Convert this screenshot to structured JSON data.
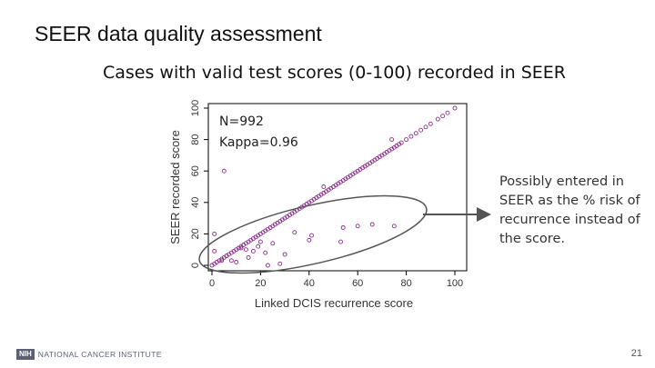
{
  "slide": {
    "title": "SEER data quality assessment",
    "subtitle": "Cases with valid test scores (0-100) recorded in SEER",
    "page_number": "21"
  },
  "footer": {
    "logo_badge": "NIH",
    "logo_text": "NATIONAL CANCER INSTITUTE"
  },
  "annotation": {
    "text": "Possibly entered in SEER as the % risk of recurrence instead of the score."
  },
  "colors": {
    "points": "#8b2c8b",
    "ellipse": "#555555",
    "arrow": "#555555"
  },
  "chart_data": {
    "type": "scatter",
    "title": "",
    "xlabel": "Linked DCIS recurrence score",
    "ylabel": "SEER recorded score",
    "xlim": [
      0,
      100
    ],
    "ylim": [
      0,
      100
    ],
    "xticks": [
      0,
      20,
      40,
      60,
      80,
      100
    ],
    "yticks": [
      0,
      20,
      40,
      60,
      80,
      100
    ],
    "grid": false,
    "stats": {
      "n_label": "N=992",
      "kappa_label": "Kappa=0.96"
    },
    "series": [
      {
        "points": [
          [
            0,
            0
          ],
          [
            1,
            1
          ],
          [
            2,
            2
          ],
          [
            3,
            3
          ],
          [
            4,
            4
          ],
          [
            5,
            5
          ],
          [
            6,
            6
          ],
          [
            7,
            7
          ],
          [
            8,
            8
          ],
          [
            9,
            9
          ],
          [
            10,
            10
          ],
          [
            11,
            11
          ],
          [
            12,
            12
          ],
          [
            13,
            13
          ],
          [
            14,
            14
          ],
          [
            15,
            15
          ],
          [
            16,
            16
          ],
          [
            17,
            17
          ],
          [
            18,
            18
          ],
          [
            19,
            19
          ],
          [
            20,
            20
          ],
          [
            21,
            21
          ],
          [
            22,
            22
          ],
          [
            23,
            23
          ],
          [
            24,
            24
          ],
          [
            25,
            25
          ],
          [
            26,
            26
          ],
          [
            27,
            27
          ],
          [
            28,
            28
          ],
          [
            29,
            29
          ],
          [
            30,
            30
          ],
          [
            31,
            31
          ],
          [
            32,
            32
          ],
          [
            33,
            33
          ],
          [
            34,
            34
          ],
          [
            35,
            35
          ],
          [
            36,
            36
          ],
          [
            37,
            37
          ],
          [
            38,
            38
          ],
          [
            39,
            39
          ],
          [
            40,
            40
          ],
          [
            41,
            41
          ],
          [
            42,
            42
          ],
          [
            43,
            43
          ],
          [
            44,
            44
          ],
          [
            45,
            45
          ],
          [
            46,
            46
          ],
          [
            47,
            47
          ],
          [
            48,
            48
          ],
          [
            49,
            49
          ],
          [
            50,
            50
          ],
          [
            51,
            51
          ],
          [
            52,
            52
          ],
          [
            53,
            53
          ],
          [
            54,
            54
          ],
          [
            55,
            55
          ],
          [
            56,
            56
          ],
          [
            57,
            57
          ],
          [
            58,
            58
          ],
          [
            59,
            59
          ],
          [
            60,
            60
          ],
          [
            61,
            61
          ],
          [
            62,
            62
          ],
          [
            63,
            63
          ],
          [
            64,
            64
          ],
          [
            65,
            65
          ],
          [
            66,
            66
          ],
          [
            67,
            67
          ],
          [
            68,
            68
          ],
          [
            69,
            69
          ],
          [
            70,
            70
          ],
          [
            71,
            71
          ],
          [
            72,
            72
          ],
          [
            73,
            73
          ],
          [
            74,
            74
          ],
          [
            75,
            75
          ],
          [
            76,
            76
          ],
          [
            77,
            77
          ],
          [
            78,
            78
          ],
          [
            80,
            80
          ],
          [
            82,
            82
          ],
          [
            84,
            84
          ],
          [
            86,
            86
          ],
          [
            88,
            88
          ],
          [
            90,
            90
          ],
          [
            93,
            93
          ],
          [
            95,
            95
          ],
          [
            97,
            97
          ],
          [
            100,
            100
          ],
          [
            1,
            9
          ],
          [
            1,
            20
          ],
          [
            5,
            60
          ],
          [
            4,
            3
          ],
          [
            6,
            6
          ],
          [
            8,
            3
          ],
          [
            10,
            2
          ],
          [
            12,
            11
          ],
          [
            14,
            10
          ],
          [
            15,
            5
          ],
          [
            17,
            9
          ],
          [
            19,
            12
          ],
          [
            20,
            15
          ],
          [
            22,
            8
          ],
          [
            23,
            0
          ],
          [
            25,
            14
          ],
          [
            28,
            1
          ],
          [
            30,
            7
          ],
          [
            34,
            21
          ],
          [
            40,
            16
          ],
          [
            41,
            19
          ],
          [
            46,
            50
          ],
          [
            53,
            15
          ],
          [
            54,
            24
          ],
          [
            60,
            25
          ],
          [
            66,
            26
          ],
          [
            75,
            25
          ],
          [
            74,
            80
          ]
        ]
      }
    ]
  }
}
